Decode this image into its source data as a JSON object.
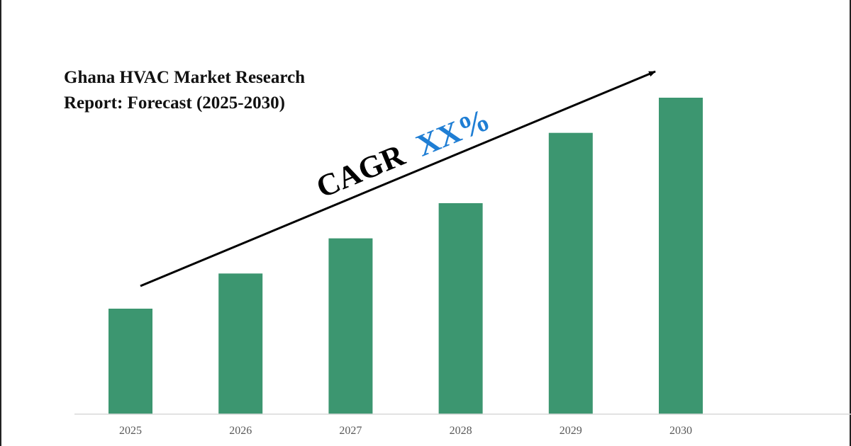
{
  "title_lines": [
    "Ghana HVAC Market Research",
    "Report: Forecast (2025-2030)"
  ],
  "cagr": {
    "label": "CAGR",
    "value": "XX%",
    "label_color": "#000000",
    "value_color": "#1f7ed4"
  },
  "chart_data": {
    "type": "bar",
    "title": "Ghana HVAC Market Research Report: Forecast (2025-2030)",
    "categories": [
      "2025",
      "2026",
      "2027",
      "2028",
      "2029",
      "2030"
    ],
    "values": [
      30,
      40,
      50,
      60,
      80,
      90
    ],
    "ylim": [
      0,
      100
    ],
    "xlabel": "",
    "ylabel": "",
    "grid": false,
    "legend": "none",
    "bar_color": "#3c9670",
    "axis_color": "#d9d9d9",
    "trend_arrow": true
  }
}
